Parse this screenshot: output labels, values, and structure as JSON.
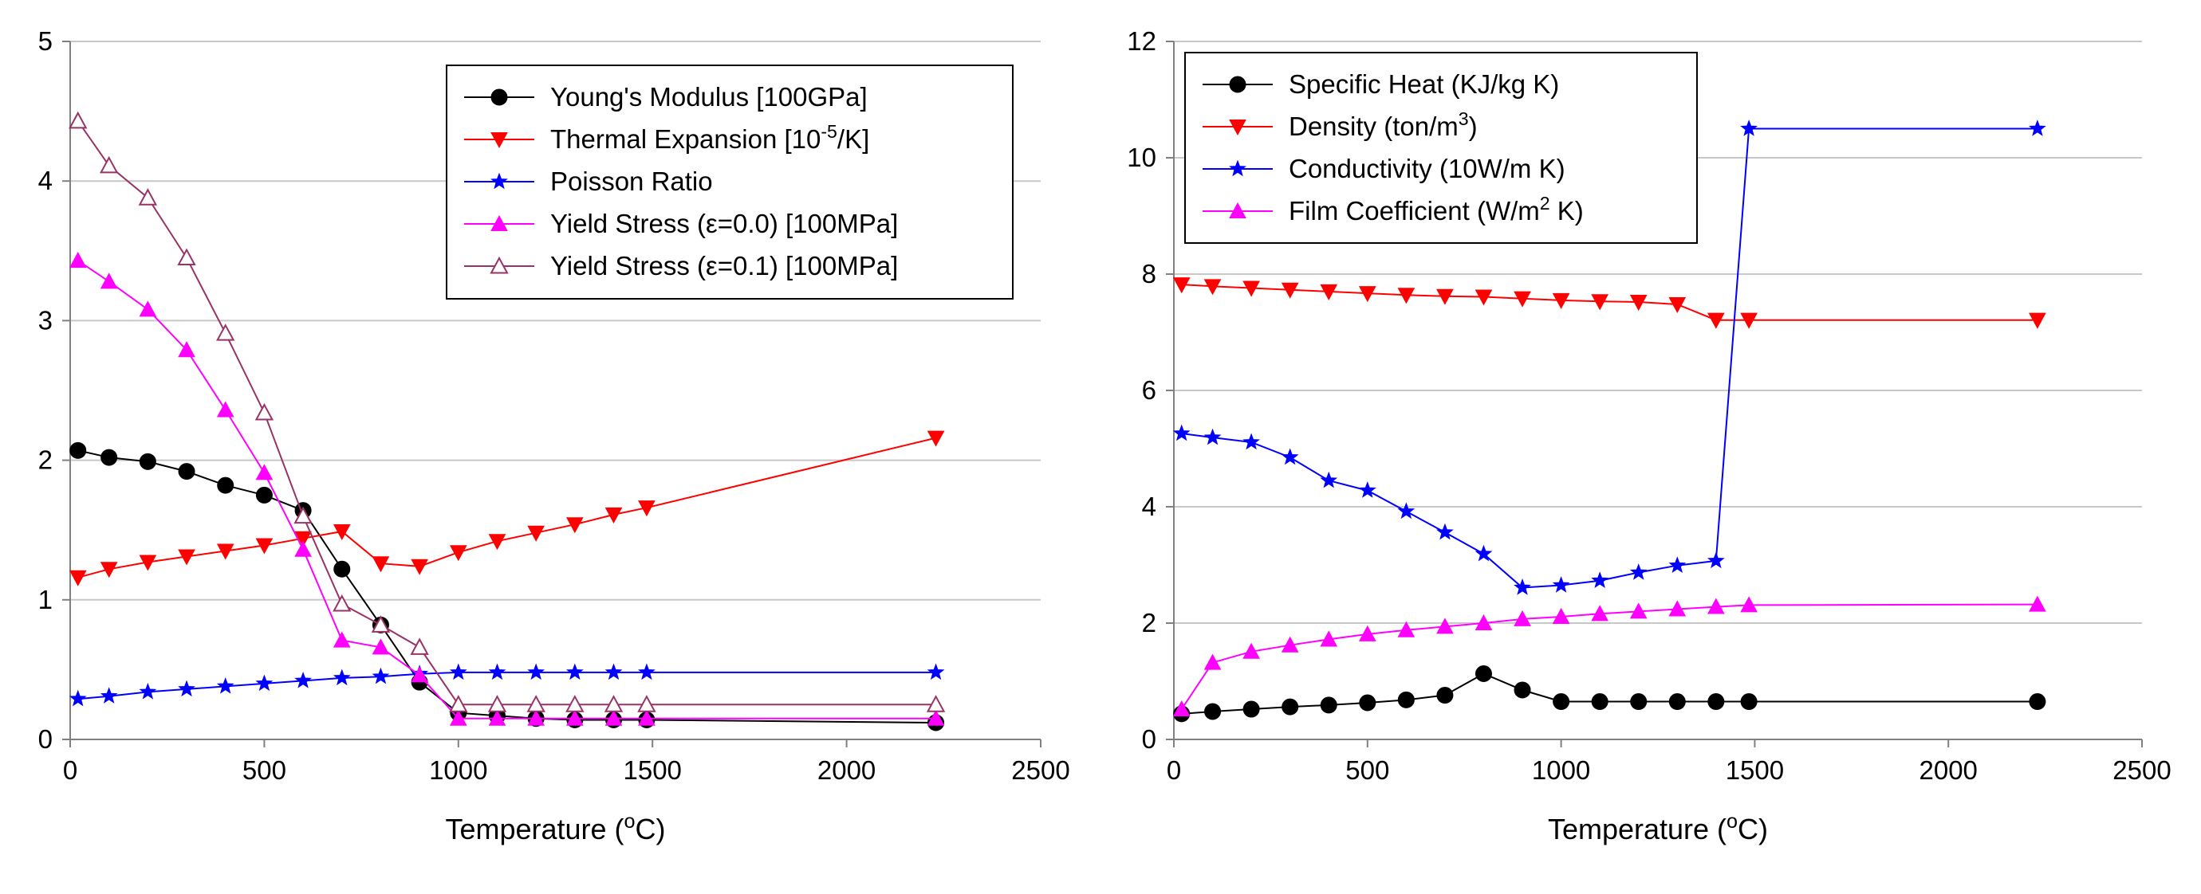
{
  "chart_data": [
    {
      "type": "line",
      "xlabel": "Temperature (oC)",
      "xlabel_parts": [
        "Temperature (",
        "o",
        "C)"
      ],
      "ylabel": "",
      "xlim": [
        0,
        2500
      ],
      "ylim": [
        0,
        5
      ],
      "xticks": [
        0,
        500,
        1000,
        1500,
        2000,
        2500
      ],
      "yticks": [
        0,
        1,
        2,
        3,
        4,
        5
      ],
      "grid": "horizontal",
      "legend_position": "top-right",
      "series": [
        {
          "name": "Young's Modulus [100GPa]",
          "label_parts": [
            "Young's Modulus [100GPa]"
          ],
          "color": "#000000",
          "marker": "circle",
          "x": [
            20,
            100,
            200,
            300,
            400,
            500,
            600,
            700,
            800,
            900,
            1000,
            1100,
            1200,
            1300,
            1400,
            1485,
            2230
          ],
          "y": [
            2.07,
            2.02,
            1.99,
            1.92,
            1.82,
            1.75,
            1.64,
            1.22,
            0.82,
            0.41,
            0.19,
            0.17,
            0.15,
            0.14,
            0.14,
            0.14,
            0.12
          ]
        },
        {
          "name": "Thermal Expansion [10-5/K]",
          "label_parts": [
            "Thermal Expansion [10",
            "-5",
            "/K]"
          ],
          "color": "#ff0000",
          "marker": "triangle-down",
          "x": [
            20,
            100,
            200,
            300,
            400,
            500,
            600,
            700,
            800,
            900,
            1000,
            1100,
            1200,
            1300,
            1400,
            1485,
            2230
          ],
          "y": [
            1.16,
            1.22,
            1.27,
            1.31,
            1.35,
            1.39,
            1.44,
            1.49,
            1.26,
            1.24,
            1.34,
            1.42,
            1.48,
            1.54,
            1.61,
            1.66,
            2.16
          ]
        },
        {
          "name": "Poisson Ratio",
          "label_parts": [
            "Poisson Ratio"
          ],
          "color": "#0000ff",
          "marker": "star",
          "x": [
            20,
            100,
            200,
            300,
            400,
            500,
            600,
            700,
            800,
            900,
            1000,
            1100,
            1200,
            1300,
            1400,
            1485,
            2230
          ],
          "y": [
            0.29,
            0.31,
            0.34,
            0.36,
            0.38,
            0.4,
            0.42,
            0.44,
            0.45,
            0.47,
            0.48,
            0.48,
            0.48,
            0.48,
            0.48,
            0.48,
            0.48
          ]
        },
        {
          "name": "Yield Stress (ε=0.0) [100MPa]",
          "label_parts": [
            "Yield Stress (ε=0.0) [100MPa]"
          ],
          "color": "#ff00ff",
          "marker": "triangle",
          "x": [
            20,
            100,
            200,
            300,
            400,
            500,
            600,
            700,
            800,
            900,
            1000,
            1100,
            1200,
            1300,
            1400,
            1485,
            2230
          ],
          "y": [
            3.43,
            3.28,
            3.08,
            2.79,
            2.36,
            1.91,
            1.36,
            0.71,
            0.66,
            0.46,
            0.15,
            0.15,
            0.15,
            0.15,
            0.15,
            0.15,
            0.15
          ]
        },
        {
          "name": "Yield Stress (ε=0.1) [100MPa]",
          "label_parts": [
            "Yield Stress (ε=0.1) [100MPa]"
          ],
          "color": "#993366",
          "marker": "triangle-open",
          "x": [
            20,
            100,
            200,
            300,
            400,
            500,
            600,
            700,
            800,
            900,
            1000,
            1100,
            1200,
            1300,
            1400,
            1485,
            2230
          ],
          "y": [
            4.43,
            4.11,
            3.88,
            3.45,
            2.91,
            2.34,
            1.6,
            0.97,
            0.82,
            0.66,
            0.25,
            0.25,
            0.25,
            0.25,
            0.25,
            0.25,
            0.25
          ]
        }
      ]
    },
    {
      "type": "line",
      "xlabel": "Temperature (oC)",
      "xlabel_parts": [
        "Temperature (",
        "o",
        "C)"
      ],
      "ylabel": "",
      "xlim": [
        0,
        2500
      ],
      "ylim": [
        0,
        12
      ],
      "xticks": [
        0,
        500,
        1000,
        1500,
        2000,
        2500
      ],
      "yticks": [
        0,
        2,
        4,
        6,
        8,
        10,
        12
      ],
      "grid": "horizontal",
      "legend_position": "top-left",
      "series": [
        {
          "name": "Specific Heat (KJ/kg K)",
          "label_parts": [
            "Specific Heat (KJ/kg K)"
          ],
          "color": "#000000",
          "marker": "circle",
          "x": [
            20,
            100,
            200,
            300,
            400,
            500,
            600,
            700,
            800,
            900,
            1000,
            1100,
            1200,
            1300,
            1400,
            1485,
            2230
          ],
          "y": [
            0.44,
            0.48,
            0.52,
            0.56,
            0.59,
            0.63,
            0.68,
            0.76,
            1.13,
            0.85,
            0.65,
            0.65,
            0.65,
            0.65,
            0.65,
            0.65,
            0.65
          ]
        },
        {
          "name": "Density (ton/m3)",
          "label_parts": [
            "Density (ton/m",
            "3",
            ")"
          ],
          "color": "#ff0000",
          "marker": "triangle-down",
          "x": [
            20,
            100,
            200,
            300,
            400,
            500,
            600,
            700,
            800,
            900,
            1000,
            1100,
            1200,
            1300,
            1400,
            1485,
            2230
          ],
          "y": [
            7.82,
            7.79,
            7.76,
            7.73,
            7.7,
            7.67,
            7.64,
            7.62,
            7.61,
            7.58,
            7.55,
            7.53,
            7.52,
            7.48,
            7.21,
            7.21,
            7.21
          ]
        },
        {
          "name": "Conductivity (10W/m K)",
          "label_parts": [
            "Conductivity (10W/m K)"
          ],
          "color": "#0000ff",
          "marker": "star",
          "x": [
            20,
            100,
            200,
            300,
            400,
            500,
            600,
            700,
            800,
            900,
            1000,
            1100,
            1200,
            1300,
            1400,
            1485,
            2230
          ],
          "y": [
            5.26,
            5.19,
            5.11,
            4.85,
            4.45,
            4.28,
            3.92,
            3.56,
            3.19,
            2.61,
            2.65,
            2.73,
            2.87,
            2.99,
            3.07,
            10.5,
            10.5
          ]
        },
        {
          "name": "Film Coefficient (W/m2 K)",
          "label_parts": [
            "Film Coefficient (W/m",
            "2",
            " K)"
          ],
          "color": "#ff00ff",
          "marker": "triangle",
          "x": [
            20,
            100,
            200,
            300,
            400,
            500,
            600,
            700,
            800,
            900,
            1000,
            1100,
            1200,
            1300,
            1400,
            1485,
            2230
          ],
          "y": [
            0.52,
            1.32,
            1.51,
            1.62,
            1.72,
            1.81,
            1.88,
            1.94,
            2.0,
            2.07,
            2.11,
            2.16,
            2.2,
            2.24,
            2.28,
            2.31,
            2.32
          ]
        }
      ]
    }
  ]
}
